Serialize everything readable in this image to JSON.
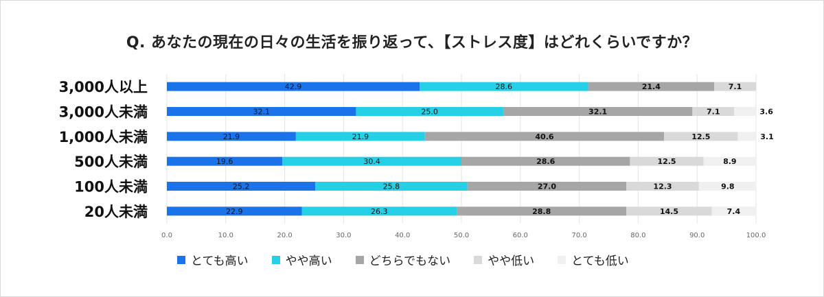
{
  "chart_data": {
    "type": "bar",
    "orientation": "horizontal",
    "stacked": true,
    "title": "Q. あなたの現在の日々の生活を振り返って、【ストレス度】はどれくらいですか？",
    "categories": [
      "3,000人以上",
      "3,000人未満",
      "1,000人未満",
      "500人未満",
      "100人未満",
      "20人未満"
    ],
    "series": [
      {
        "name": "とても高い",
        "color": "#1a73e8",
        "values": [
          42.9,
          32.1,
          21.9,
          19.6,
          25.2,
          22.9
        ]
      },
      {
        "name": "やや高い",
        "color": "#25d0e6",
        "values": [
          28.6,
          25.0,
          21.9,
          30.4,
          25.8,
          26.3
        ]
      },
      {
        "name": "どちらでもない",
        "color": "#a6a6a6",
        "values": [
          21.4,
          32.1,
          40.6,
          28.6,
          27.0,
          28.8
        ]
      },
      {
        "name": "やや低い",
        "color": "#d9d9d9",
        "values": [
          7.1,
          7.1,
          12.5,
          12.5,
          12.3,
          14.5
        ]
      },
      {
        "name": "とても低い",
        "color": "#f0f0f0",
        "values": [
          0.0,
          3.6,
          3.1,
          8.9,
          9.8,
          7.4
        ]
      }
    ],
    "value_labels": [
      [
        "42.9",
        "28.6",
        "21.4",
        "7.1",
        ""
      ],
      [
        "32.1",
        "25.0",
        "32.1",
        "7.1",
        "3.6"
      ],
      [
        "21.9",
        "21.9",
        "40.6",
        "12.5",
        "3.1"
      ],
      [
        "19.6",
        "30.4",
        "28.6",
        "12.5",
        "8.9"
      ],
      [
        "25.2",
        "25.8",
        "27.0",
        "12.3",
        "9.8"
      ],
      [
        "22.9",
        "26.3",
        "28.8",
        "14.5",
        "7.4"
      ]
    ],
    "xlim": [
      0,
      100
    ],
    "xticks": [
      "0.0",
      "10.0",
      "20.0",
      "30.0",
      "40.0",
      "50.0",
      "60.0",
      "70.0",
      "80.0",
      "90.0",
      "100.0"
    ],
    "grid": true,
    "legend_position": "bottom-left"
  }
}
